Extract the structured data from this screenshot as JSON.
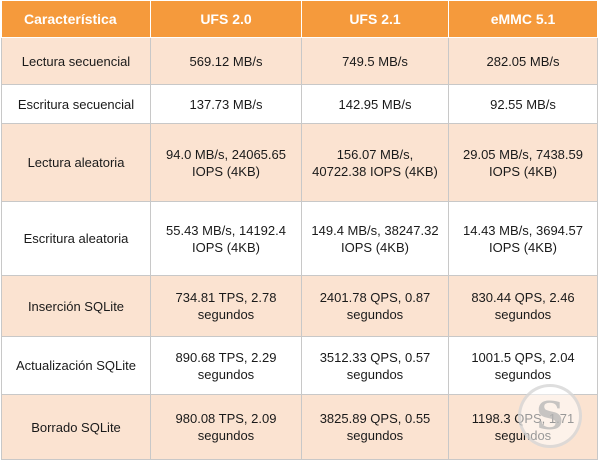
{
  "header": {
    "col0": "Característica",
    "col1": "UFS 2.0",
    "col2": "UFS 2.1",
    "col3": "eMMC 5.1"
  },
  "rows": [
    {
      "label": "Lectura secuencial",
      "ufs20": "569.12 MB/s",
      "ufs21": "749.5 MB/s",
      "emmc51": "282.05 MB/s"
    },
    {
      "label": "Escritura secuencial",
      "ufs20": "137.73 MB/s",
      "ufs21": "142.95 MB/s",
      "emmc51": "92.55 MB/s"
    },
    {
      "label": "Lectura aleatoria",
      "ufs20": "94.0 MB/s, 24065.65 IOPS (4KB)",
      "ufs21": "156.07 MB/s, 40722.38 IOPS (4KB)",
      "emmc51": "29.05 MB/s, 7438.59 IOPS (4KB)"
    },
    {
      "label": "Escritura aleatoria",
      "ufs20": "55.43 MB/s, 14192.4 IOPS (4KB)",
      "ufs21": "149.4 MB/s, 38247.32 IOPS (4KB)",
      "emmc51": "14.43 MB/s, 3694.57 IOPS (4KB)"
    },
    {
      "label": "Inserción SQLite",
      "ufs20": "734.81 TPS, 2.78 segundos",
      "ufs21": "2401.78 QPS, 0.87 segundos",
      "emmc51": "830.44 QPS, 2.46 segundos"
    },
    {
      "label": "Actualización SQLite",
      "ufs20": "890.68 TPS, 2.29 segundos",
      "ufs21": "3512.33 QPS, 0.57 segundos",
      "emmc51": "1001.5 QPS, 2.04 segundos"
    },
    {
      "label": "Borrado SQLite",
      "ufs20": "980.08 TPS, 2.09 segundos",
      "ufs21": "3825.89 QPS, 0.55 segundos",
      "emmc51": "1198.3 QPS, 1.71 segundos"
    }
  ],
  "colors": {
    "header_bg": "#f59a3c",
    "row_alt_bg": "#fbe3d1",
    "row_bg": "#ffffff"
  }
}
